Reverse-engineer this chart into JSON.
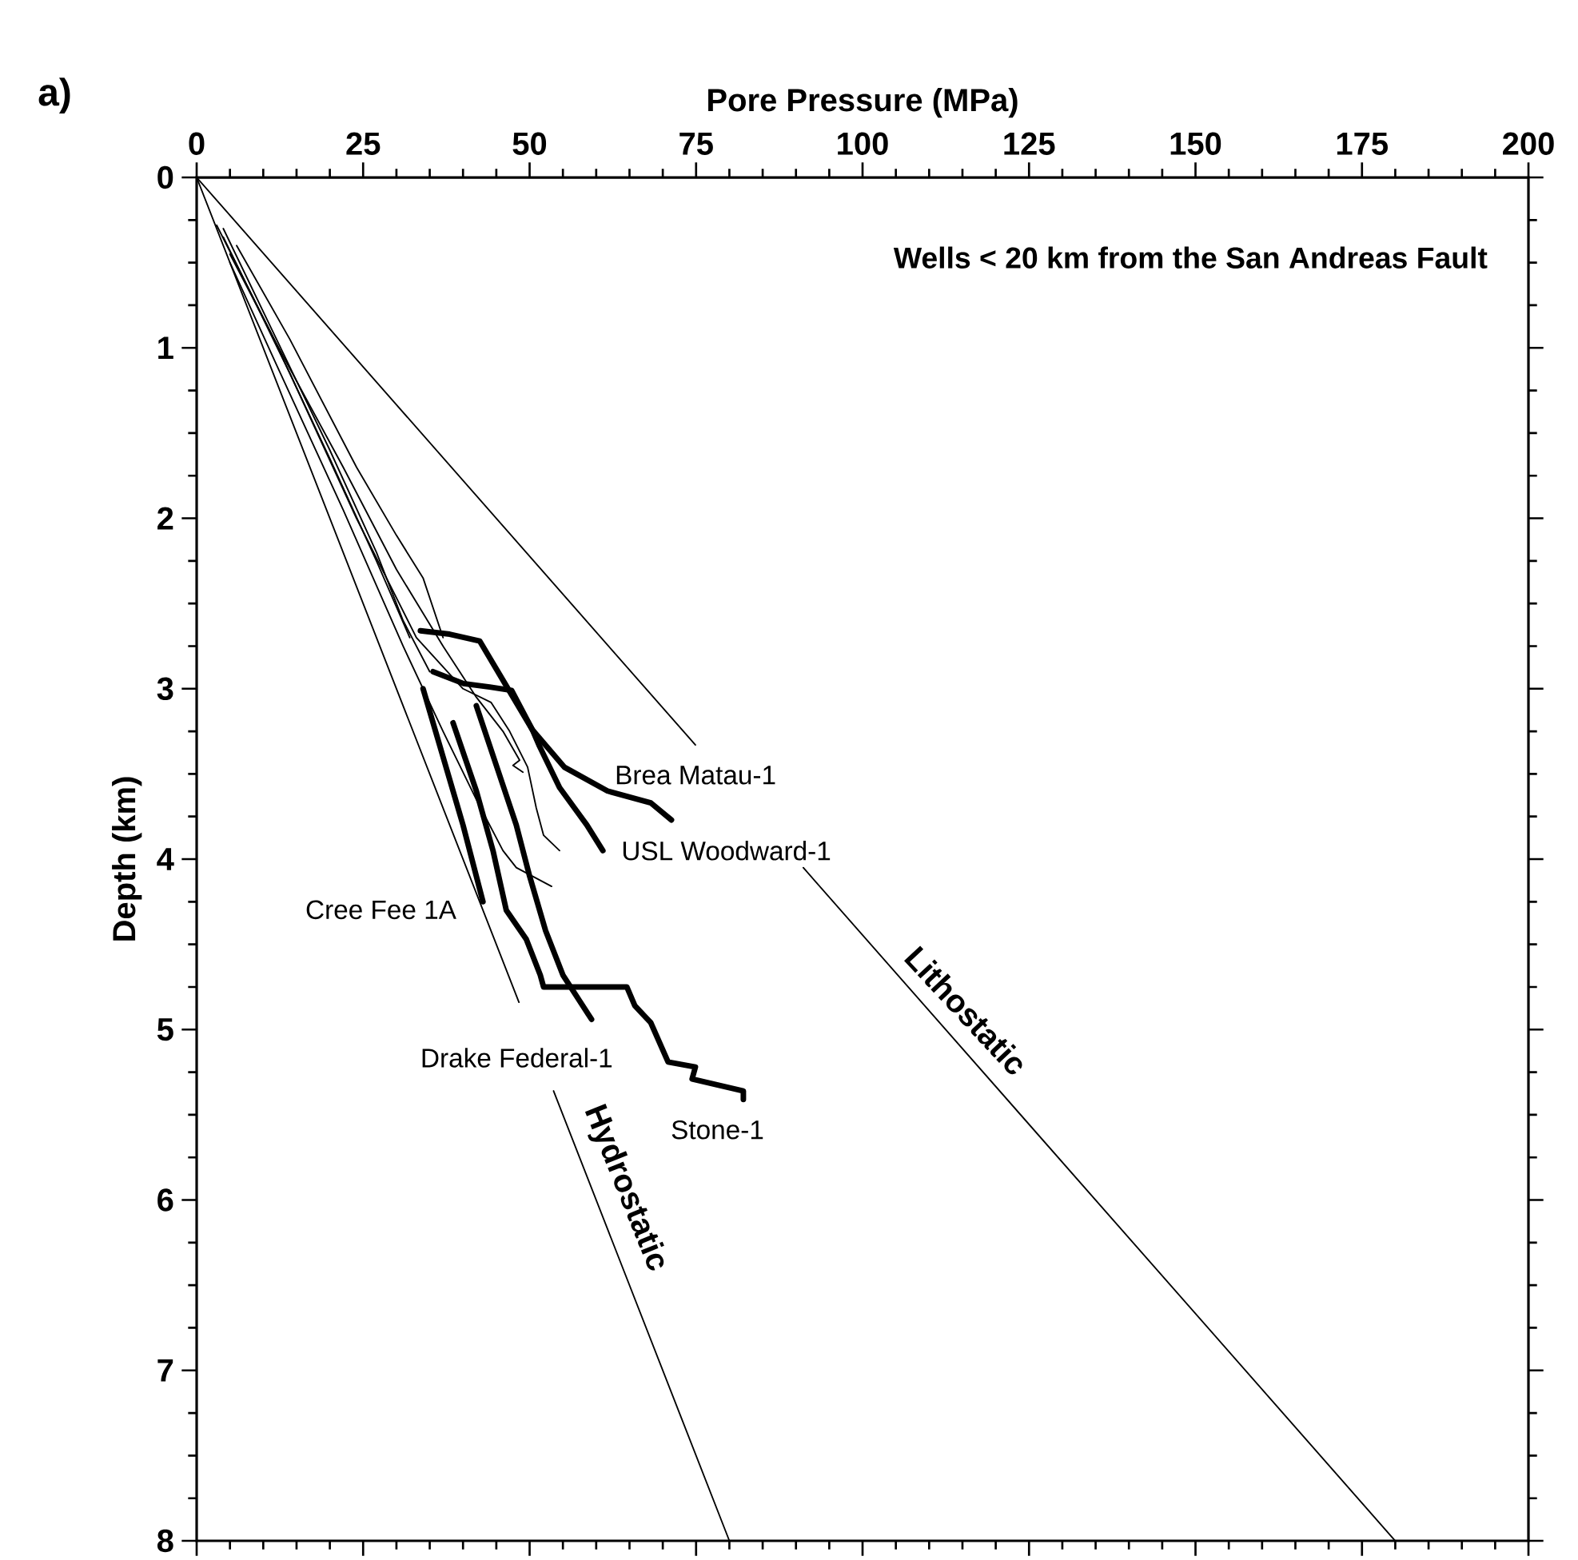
{
  "chart_data": {
    "type": "line",
    "title": "Wells < 20 km from the San Andreas Fault",
    "xlabel": "Pore Pressure (MPa)",
    "ylabel": "Depth (km)",
    "xlim": [
      0,
      200
    ],
    "xticks": [
      0,
      25,
      50,
      75,
      100,
      125,
      150,
      175,
      200
    ],
    "ylim": [
      8,
      0
    ],
    "yticks": [
      0,
      1,
      2,
      3,
      4,
      5,
      6,
      7,
      8
    ],
    "grid": false,
    "marker": "none",
    "line_style": "solid",
    "annotations": [
      "a)",
      {
        "text": "Hydrostatic",
        "x": 60,
        "y": 6.0
      },
      {
        "text": "Lithostatic",
        "x": 112.5,
        "y": 5.0
      }
    ],
    "series": [
      {
        "color": "#000000",
        "x": [
          0,
          48.4,
          null,
          53.6,
          80
        ],
        "values": [
          0,
          4.84,
          null,
          5.36,
          8
        ]
      },
      {
        "color": "#000000",
        "x": [
          0,
          74.9,
          null,
          91.1,
          180
        ],
        "values": [
          0,
          3.33,
          null,
          4.05,
          8
        ]
      },
      {
        "color": "#000000",
        "x": [
          6,
          14,
          24,
          30,
          34,
          37
        ],
        "values": [
          0.4,
          0.95,
          1.7,
          2.1,
          2.35,
          2.7
        ]
      },
      {
        "color": "#000000",
        "x": [
          4,
          12,
          20,
          27,
          31,
          35
        ],
        "values": [
          0.3,
          0.95,
          1.6,
          2.2,
          2.6,
          2.9
        ]
      },
      {
        "color": "#000000",
        "x": [
          3,
          11,
          20,
          27,
          32
        ],
        "values": [
          0.28,
          0.9,
          1.65,
          2.25,
          2.7
        ]
      },
      {
        "color": "#000000",
        "x": [
          5,
          13,
          22,
          30,
          37,
          42,
          46,
          48.5,
          47.5,
          49
        ],
        "values": [
          0.45,
          1.05,
          1.7,
          2.3,
          2.75,
          3.05,
          3.25,
          3.42,
          3.45,
          3.49
        ]
      },
      {
        "color": "#000000",
        "x": [
          4,
          14,
          24,
          33,
          40,
          44.2,
          47,
          49.7,
          51,
          52.1,
          54.5
        ],
        "values": [
          0.35,
          1.15,
          2.0,
          2.7,
          3.0,
          3.08,
          3.25,
          3.46,
          3.7,
          3.86,
          3.95
        ]
      },
      {
        "color": "#000000",
        "x": [
          5,
          12,
          22,
          31,
          37,
          42,
          46,
          48,
          53.3
        ],
        "values": [
          0.5,
          1.1,
          1.95,
          2.75,
          3.25,
          3.65,
          3.95,
          4.05,
          4.16
        ]
      },
      {
        "name": "Brea Matau-1",
        "color": "#000000",
        "x": [
          33.6,
          38,
          42.5,
          46,
          50.4,
          55.2,
          61.7,
          68.2,
          71.3
        ],
        "values": [
          2.66,
          2.68,
          2.72,
          2.95,
          3.24,
          3.46,
          3.6,
          3.67,
          3.77
        ]
      },
      {
        "name": "USL Woodward-1",
        "color": "#000000",
        "x": [
          35.5,
          40.1,
          44,
          47.3,
          50.4,
          51.4,
          54.5,
          58.6,
          61
        ],
        "values": [
          2.9,
          2.97,
          2.99,
          3.01,
          3.24,
          3.33,
          3.58,
          3.8,
          3.95
        ]
      },
      {
        "name": "Cree Fee 1A",
        "color": "#000000",
        "x": [
          34,
          37,
          40,
          43
        ],
        "values": [
          3.0,
          3.4,
          3.8,
          4.25
        ]
      },
      {
        "name": "Drake Federal-1",
        "color": "#000000",
        "x": [
          42,
          45,
          48,
          50,
          52.4,
          55,
          59.3
        ],
        "values": [
          3.1,
          3.45,
          3.8,
          4.1,
          4.42,
          4.68,
          4.94
        ]
      },
      {
        "name": "Stone-1",
        "color": "#000000",
        "x": [
          38.5,
          42,
          44.5,
          46.5,
          49.5,
          51.6,
          52.1,
          64.6,
          65.8,
          68.2,
          70.8,
          74.9,
          74.4,
          82.1,
          82.1
        ],
        "values": [
          3.2,
          3.6,
          3.95,
          4.3,
          4.47,
          4.68,
          4.75,
          4.75,
          4.86,
          4.96,
          5.19,
          5.22,
          5.29,
          5.36,
          5.41
        ]
      }
    ]
  }
}
